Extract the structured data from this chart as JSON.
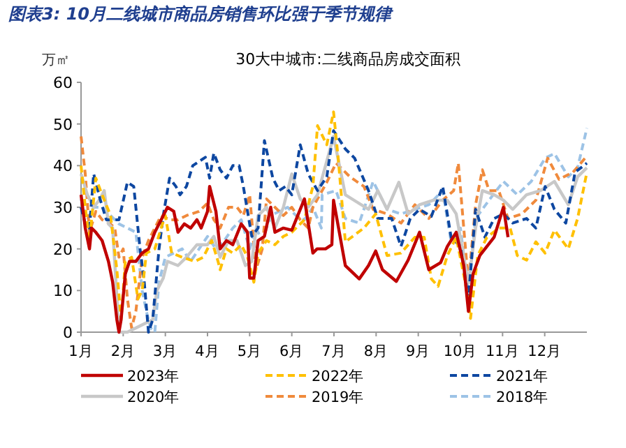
{
  "chart_data": {
    "type": "line",
    "title": "图表3: 10月二线城市商品房销售环比强于季节规律",
    "subtitle": "30大中城市:二线商品房成交面积",
    "ylabel": "万㎡",
    "xlim": [
      1,
      13
    ],
    "xticks": [
      {
        "value": 1,
        "label": "1月"
      },
      {
        "value": 2,
        "label": "2月"
      },
      {
        "value": 3,
        "label": "3月"
      },
      {
        "value": 4,
        "label": "4月"
      },
      {
        "value": 5,
        "label": "5月"
      },
      {
        "value": 6,
        "label": "6月"
      },
      {
        "value": 7,
        "label": "7月"
      },
      {
        "value": 8,
        "label": "8月"
      },
      {
        "value": 9,
        "label": "9月"
      },
      {
        "value": 10,
        "label": "10月"
      },
      {
        "value": 11,
        "label": "11月"
      },
      {
        "value": 12,
        "label": "12月"
      }
    ],
    "ylim": [
      0,
      60
    ],
    "yticks": [
      0,
      10,
      20,
      30,
      40,
      50,
      60
    ],
    "legend": "bottom",
    "marker": "none",
    "series": [
      {
        "name": "2023年",
        "color": "#c00000",
        "line_style": "solid",
        "x": [
          1.0,
          1.1,
          1.2,
          1.25,
          1.35,
          1.5,
          1.65,
          1.75,
          1.85,
          1.9,
          1.95,
          2.05,
          2.15,
          2.3,
          2.45,
          2.6,
          2.75,
          2.9,
          3.05,
          3.2,
          3.3,
          3.45,
          3.6,
          3.75,
          3.85,
          4.0,
          4.05,
          4.2,
          4.3,
          4.45,
          4.6,
          4.8,
          4.95,
          5.0,
          5.1,
          5.2,
          5.35,
          5.5,
          5.6,
          5.8,
          6.0,
          6.3,
          6.5,
          6.6,
          6.8,
          6.95,
          6.99,
          7.27,
          7.6,
          7.82,
          7.99,
          8.15,
          8.48,
          8.76,
          9.03,
          9.25,
          9.53,
          9.69,
          9.9,
          10.08,
          10.19,
          10.3,
          10.46,
          10.8,
          11.02,
          11.13
        ],
        "values": [
          33,
          25,
          20,
          25,
          24,
          22,
          17,
          12,
          3,
          0,
          3,
          14,
          17,
          17,
          19,
          20,
          24,
          27,
          30,
          29,
          24,
          26,
          25,
          27,
          25,
          29,
          35,
          29,
          20,
          22,
          21,
          26,
          24,
          13,
          13,
          22,
          23,
          30,
          24,
          25,
          24.5,
          32,
          19,
          20,
          20,
          21,
          31.7,
          16,
          12.8,
          16,
          19.5,
          15,
          12.2,
          17.3,
          24,
          15,
          16.7,
          20.6,
          24,
          16,
          5,
          14,
          18.4,
          22.8,
          30,
          22.8
        ]
      },
      {
        "name": "2022年",
        "color": "#ffc000",
        "line_style": "dashed",
        "x": [
          1.0,
          1.1,
          1.2,
          1.35,
          1.5,
          1.7,
          1.85,
          1.95,
          2.05,
          2.2,
          2.35,
          2.45,
          2.55,
          2.75,
          2.9,
          3.0,
          3.15,
          3.4,
          3.7,
          3.9,
          4.1,
          4.25,
          4.3,
          4.45,
          4.6,
          4.8,
          4.95,
          5.1,
          5.2,
          5.4,
          5.6,
          5.8,
          6.0,
          6.3,
          6.5,
          6.61,
          6.83,
          6.99,
          7.1,
          7.27,
          7.71,
          7.99,
          8.26,
          8.59,
          8.92,
          9.14,
          9.31,
          9.47,
          9.69,
          9.9,
          10.12,
          10.24,
          10.41,
          10.63,
          10.91,
          11.18,
          11.35,
          11.57,
          11.79,
          12.01,
          12.23,
          12.56,
          12.78,
          13.0
        ],
        "values": [
          40,
          30,
          22,
          37,
          33,
          28,
          15,
          3,
          17,
          18,
          8,
          10,
          19,
          20,
          25,
          28,
          19,
          18,
          17,
          18,
          22,
          17,
          15,
          20,
          19,
          21,
          18,
          12,
          19,
          22,
          21,
          23,
          24,
          27,
          35,
          49.6,
          45,
          52.9,
          41.8,
          21.7,
          25,
          28.4,
          18.4,
          19,
          22.8,
          22.8,
          12.8,
          11,
          18.4,
          22.8,
          11.7,
          3.3,
          18.4,
          22.8,
          25,
          25,
          18.4,
          17.3,
          21.7,
          19,
          24.5,
          20,
          27.3,
          38.4
        ]
      },
      {
        "name": "2021年",
        "color": "#0d47a1",
        "line_style": "dashed",
        "x": [
          1.0,
          1.1,
          1.2,
          1.3,
          1.45,
          1.6,
          1.75,
          1.9,
          2.1,
          2.25,
          2.4,
          2.5,
          2.6,
          2.7,
          2.85,
          2.95,
          3.1,
          3.25,
          3.35,
          3.5,
          3.65,
          3.8,
          3.95,
          4.05,
          4.15,
          4.3,
          4.45,
          4.6,
          4.75,
          4.85,
          5.05,
          5.2,
          5.35,
          5.55,
          5.7,
          5.85,
          6.0,
          6.2,
          6.39,
          6.61,
          6.83,
          6.99,
          7.27,
          7.49,
          7.82,
          8.04,
          8.37,
          8.59,
          8.81,
          9.03,
          9.31,
          9.58,
          9.78,
          10.0,
          10.19,
          10.36,
          10.58,
          10.8,
          11.02,
          11.24,
          11.57,
          11.79,
          12.01,
          12.23,
          12.5,
          12.72,
          13.0
        ],
        "values": [
          30,
          26,
          25,
          38,
          32,
          27,
          27,
          27,
          36,
          35,
          20,
          12,
          0,
          3,
          20,
          28,
          37,
          35,
          33,
          35,
          40,
          41,
          42,
          37,
          43,
          39,
          37,
          40,
          40,
          35,
          23,
          25,
          46,
          37,
          34,
          35,
          33,
          45,
          38,
          34,
          37.3,
          48.4,
          44,
          41.8,
          34,
          27.3,
          27.3,
          20.6,
          27.3,
          29.5,
          27.8,
          35,
          22.8,
          20.6,
          8,
          29.5,
          22.8,
          27.3,
          28.4,
          26.2,
          27.3,
          25,
          35,
          29.5,
          26.2,
          38.4,
          40.6
        ]
      },
      {
        "name": "2020年",
        "color": "#c8c8c8",
        "line_style": "solid",
        "x": [
          1.0,
          1.15,
          1.3,
          1.45,
          1.55,
          1.65,
          1.75,
          1.9,
          2.1,
          2.3,
          2.5,
          2.7,
          2.8,
          2.95,
          3.05,
          3.3,
          3.5,
          3.75,
          4.0,
          4.15,
          4.3,
          4.5,
          4.7,
          4.9,
          5.05,
          5.2,
          5.4,
          5.6,
          5.8,
          6.0,
          6.2,
          6.39,
          6.61,
          6.99,
          7.27,
          7.82,
          8.04,
          8.26,
          8.54,
          8.76,
          9.03,
          9.36,
          9.69,
          9.9,
          10.19,
          10.36,
          10.52,
          10.8,
          11.02,
          11.24,
          11.57,
          11.9,
          12.23,
          12.56,
          12.78,
          13.0
        ],
        "values": [
          38,
          33,
          30,
          32,
          34,
          26,
          25,
          0,
          0,
          1,
          2,
          3,
          10,
          13,
          17,
          16,
          18,
          21,
          21,
          23,
          18,
          22,
          22,
          16,
          17,
          28,
          30,
          25,
          30,
          38,
          32,
          30,
          33,
          47,
          33,
          29.5,
          34,
          29.5,
          36,
          28.4,
          30.6,
          31.7,
          31.7,
          28.4,
          11.7,
          25,
          34,
          33,
          31.7,
          29.5,
          33,
          34,
          36.2,
          30.6,
          37.3,
          39.5
        ]
      },
      {
        "name": "2019年",
        "color": "#f08a3c",
        "line_style": "dashed",
        "x": [
          1.0,
          1.1,
          1.2,
          1.35,
          1.5,
          1.7,
          1.8,
          1.9,
          2.0,
          2.1,
          2.2,
          2.3,
          2.45,
          2.6,
          2.75,
          2.9,
          3.1,
          3.3,
          3.5,
          3.8,
          4.0,
          4.15,
          4.3,
          4.5,
          4.7,
          4.85,
          5.0,
          5.15,
          5.3,
          5.4,
          5.6,
          5.8,
          6.0,
          6.2,
          6.39,
          6.5,
          6.83,
          7.05,
          7.38,
          7.71,
          7.93,
          8.26,
          8.59,
          8.92,
          9.25,
          9.58,
          9.84,
          9.95,
          10.19,
          10.36,
          10.52,
          10.68,
          10.91,
          11.13,
          11.46,
          11.79,
          12.07,
          12.34,
          12.67,
          13.0
        ],
        "values": [
          47,
          38,
          24,
          29,
          27,
          26,
          25,
          18,
          20,
          8,
          1,
          5,
          18,
          22,
          25,
          28,
          27,
          27,
          28,
          29,
          31,
          27,
          25,
          30,
          30,
          28,
          33,
          15,
          20,
          32,
          30,
          28,
          30,
          27,
          25,
          30,
          36,
          40.6,
          37.3,
          35,
          29.5,
          28.4,
          26.2,
          30.6,
          27.3,
          31.7,
          34,
          40.6,
          11.7,
          30.6,
          39,
          34,
          34,
          27.3,
          28.4,
          31.7,
          41.8,
          36.7,
          38.4,
          42.3
        ]
      },
      {
        "name": "2018年",
        "color": "#9dc3e6",
        "line_style": "dashed",
        "x": [
          1.0,
          1.15,
          1.3,
          1.5,
          1.7,
          1.9,
          2.1,
          2.3,
          2.45,
          2.55,
          2.65,
          2.75,
          2.85,
          3.0,
          3.2,
          3.4,
          3.6,
          3.8,
          4.0,
          4.2,
          4.4,
          4.6,
          4.8,
          5.0,
          5.15,
          5.3,
          5.5,
          5.7,
          5.9,
          6.1,
          6.3,
          6.5,
          6.7,
          6.72,
          7.05,
          7.27,
          7.6,
          7.93,
          8.26,
          8.59,
          8.92,
          9.25,
          9.58,
          9.78,
          10.0,
          10.19,
          10.36,
          10.68,
          11.02,
          11.35,
          11.68,
          12.01,
          12.23,
          12.56,
          12.78,
          13.0
        ],
        "values": [
          32,
          27,
          30,
          30,
          28,
          26,
          25,
          24,
          10,
          5,
          1,
          0,
          12,
          18,
          19,
          20,
          17,
          20,
          23,
          20,
          22,
          25,
          27,
          20,
          25,
          22,
          28,
          29,
          30,
          28,
          27,
          30,
          25,
          33,
          34,
          27.3,
          26.2,
          36.2,
          29.5,
          28.4,
          29.5,
          30.6,
          34,
          21.7,
          25,
          9.5,
          27.3,
          31.7,
          36.2,
          33,
          36.2,
          41.8,
          42.9,
          37.3,
          39.5,
          49
        ]
      }
    ]
  }
}
